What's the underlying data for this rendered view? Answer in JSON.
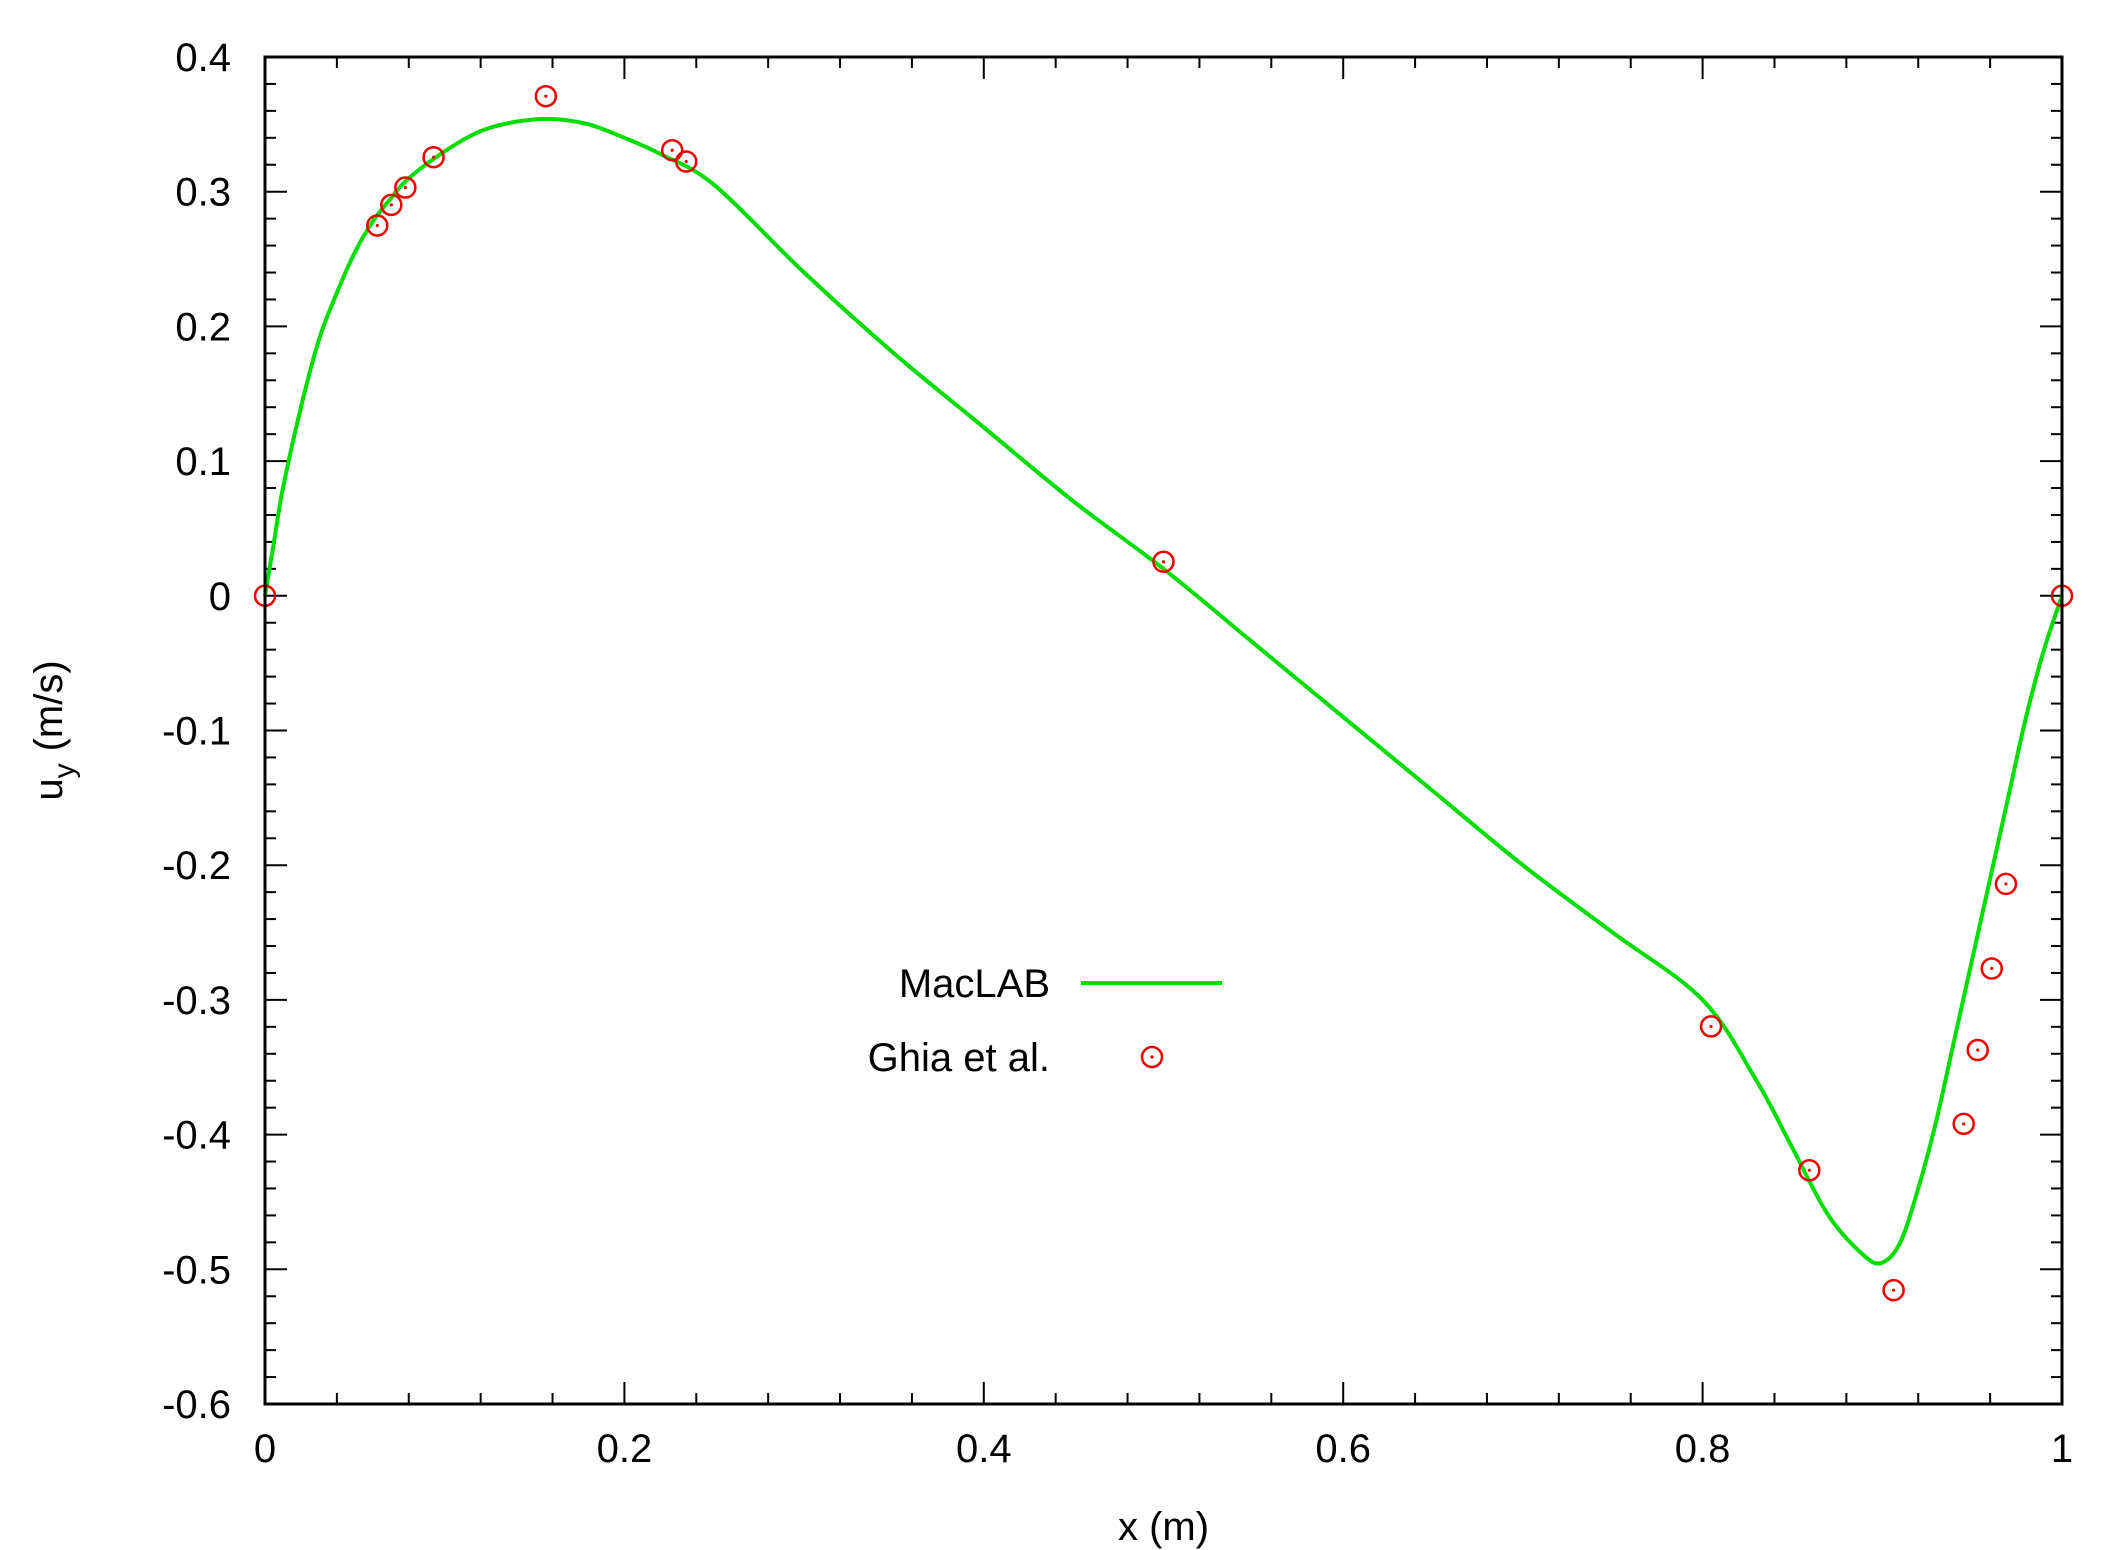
{
  "chart_data": {
    "type": "line",
    "title": "",
    "xlabel": "x (m)",
    "ylabel_main": "u",
    "ylabel_sub": "y",
    "ylabel_unit": "(m/s)",
    "xlim": [
      0,
      1
    ],
    "ylim": [
      -0.6,
      0.4
    ],
    "x_ticks": [
      0,
      0.2,
      0.4,
      0.6,
      0.8,
      1
    ],
    "x_tick_labels": [
      "0",
      "0.2",
      "0.4",
      "0.6",
      "0.8",
      "1"
    ],
    "y_ticks": [
      0.4,
      0.3,
      0.2,
      0.1,
      0,
      -0.1,
      -0.2,
      -0.3,
      -0.4,
      -0.5,
      -0.6
    ],
    "y_tick_labels": [
      "0.4",
      "0.3",
      "0.2",
      "0.1",
      "0",
      "-0.1",
      "-0.2",
      "-0.3",
      "-0.4",
      "-0.5",
      "-0.6"
    ],
    "grid": false,
    "legend_position": "center-left",
    "series": [
      {
        "name": "MacLAB",
        "style": "line",
        "color": "#00dd00",
        "x": [
          0,
          0.005,
          0.01,
          0.02,
          0.03,
          0.04,
          0.05,
          0.06,
          0.07,
          0.08,
          0.1,
          0.12,
          0.14,
          0.16,
          0.18,
          0.2,
          0.22,
          0.25,
          0.3,
          0.35,
          0.4,
          0.45,
          0.5,
          0.55,
          0.6,
          0.65,
          0.7,
          0.75,
          0.8,
          0.83,
          0.85,
          0.87,
          0.89,
          0.9,
          0.91,
          0.92,
          0.93,
          0.94,
          0.95,
          0.96,
          0.97,
          0.98,
          0.99,
          1.0
        ],
        "y": [
          0,
          0.04,
          0.08,
          0.14,
          0.19,
          0.225,
          0.255,
          0.278,
          0.295,
          0.31,
          0.33,
          0.345,
          0.352,
          0.354,
          0.35,
          0.34,
          0.328,
          0.305,
          0.24,
          0.18,
          0.125,
          0.07,
          0.02,
          -0.035,
          -0.09,
          -0.145,
          -0.2,
          -0.25,
          -0.3,
          -0.36,
          -0.41,
          -0.46,
          -0.49,
          -0.495,
          -0.48,
          -0.44,
          -0.39,
          -0.33,
          -0.27,
          -0.21,
          -0.15,
          -0.09,
          -0.04,
          0
        ]
      },
      {
        "name": "Ghia et al.",
        "style": "markers",
        "color": "#ee0000",
        "x": [
          0,
          0.0625,
          0.0703,
          0.0781,
          0.0938,
          0.1563,
          0.2266,
          0.2344,
          0.5,
          0.8047,
          0.8594,
          0.9063,
          0.9453,
          0.9531,
          0.9609,
          0.9688,
          1.0
        ],
        "y": [
          0,
          0.2749,
          0.2902,
          0.3031,
          0.3256,
          0.3709,
          0.3308,
          0.3224,
          0.0253,
          -0.3197,
          -0.4265,
          -0.5155,
          -0.392,
          -0.3372,
          -0.2767,
          -0.2139,
          0
        ]
      }
    ]
  }
}
